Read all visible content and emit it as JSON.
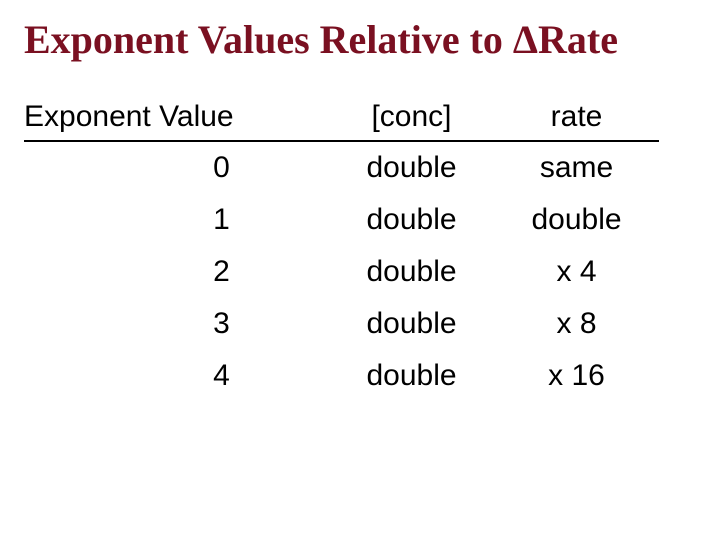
{
  "title": "Exponent Values Relative to ΔRate",
  "table": {
    "columns": [
      "Exponent Value",
      "[conc]",
      "rate"
    ],
    "rows": [
      {
        "exp": "0",
        "conc": "double",
        "rate": "same"
      },
      {
        "exp": "1",
        "conc": "double",
        "rate": "double"
      },
      {
        "exp": "2",
        "conc": "double",
        "rate": "x 4"
      },
      {
        "exp": "3",
        "conc": "double",
        "rate": "x 8"
      },
      {
        "exp": "4",
        "conc": "double",
        "rate": "x 16"
      }
    ],
    "header_fontsize": 30,
    "cell_fontsize": 30,
    "underline_color": "#000000",
    "text_color": "#000000"
  },
  "title_color": "#7a1021",
  "title_fontsize": 40,
  "background_color": "#ffffff"
}
